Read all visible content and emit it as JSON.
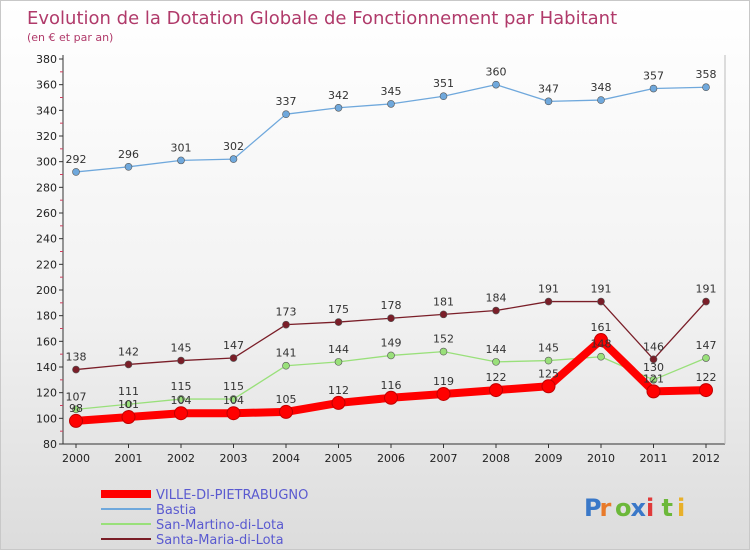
{
  "chart_data": {
    "type": "line",
    "title": "Evolution de la Dotation Globale de Fonctionnement par Habitant",
    "subtitle": "(en € et par an)",
    "x": [
      "2000",
      "2001",
      "2002",
      "2003",
      "2004",
      "2005",
      "2006",
      "2007",
      "2008",
      "2009",
      "2010",
      "2011",
      "2012"
    ],
    "ylim": [
      80,
      380
    ],
    "yticks": [
      80,
      100,
      120,
      140,
      160,
      180,
      200,
      220,
      240,
      260,
      280,
      300,
      320,
      340,
      360,
      380
    ],
    "grid": false,
    "legend_position": "bottom-left",
    "series": [
      {
        "name": "VILLE-DI-PIETRABUGNO",
        "color": "#ff0000",
        "values": [
          98,
          101,
          104,
          104,
          105,
          112,
          116,
          119,
          122,
          125,
          161,
          121,
          122
        ]
      },
      {
        "name": "Bastia",
        "color": "#6fa8dc",
        "values": [
          292,
          296,
          301,
          302,
          337,
          342,
          345,
          351,
          360,
          347,
          348,
          357,
          358
        ]
      },
      {
        "name": "San-Martino-di-Lota",
        "color": "#99e07a",
        "values": [
          107,
          111,
          115,
          115,
          141,
          144,
          149,
          152,
          144,
          145,
          148,
          130,
          147
        ]
      },
      {
        "name": "Santa-Maria-di-Lota",
        "color": "#7a1e28",
        "values": [
          138,
          142,
          145,
          147,
          173,
          175,
          178,
          181,
          184,
          191,
          191,
          146,
          191
        ]
      }
    ]
  },
  "brand": {
    "letters": [
      "P",
      "r",
      "o",
      "x",
      "i",
      "t",
      "i"
    ],
    "colors": [
      "#3a78c8",
      "#e87a2a",
      "#6cb83a",
      "#3a78c8",
      "#e03a3a",
      "#6cb83a",
      "#e8b02a"
    ]
  }
}
